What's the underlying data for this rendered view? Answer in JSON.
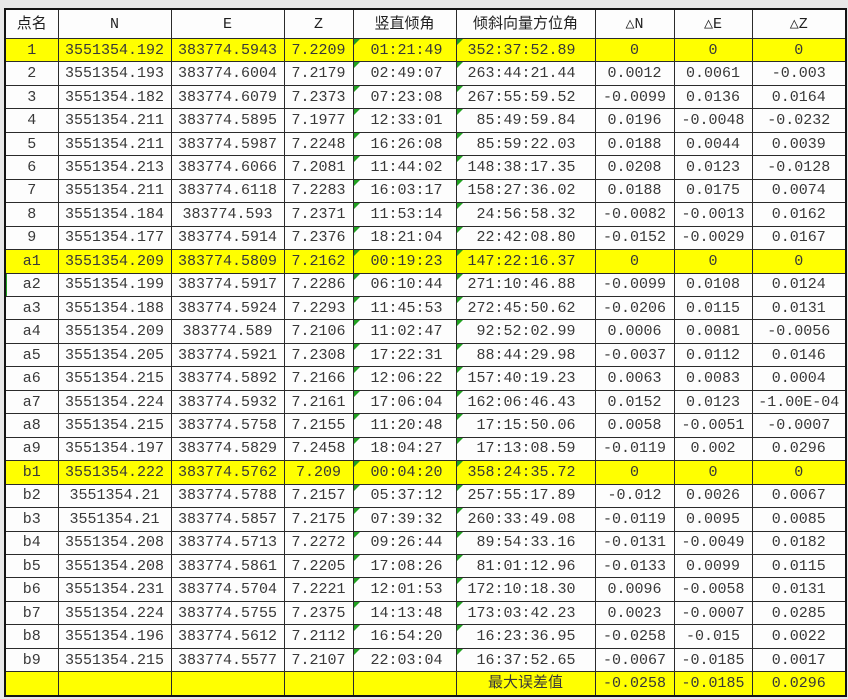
{
  "table": {
    "headers": [
      "点名",
      "N",
      "E",
      "Z",
      "竖直倾角",
      "倾斜向量方位角",
      "△N",
      "△E",
      "△Z"
    ],
    "rows": [
      {
        "cells": [
          "1",
          "3551354.192",
          "383774.5943",
          "7.2209",
          "01:21:49",
          "352:37:52.89",
          "0",
          "0",
          "0"
        ],
        "highlight": true,
        "flags": [
          4,
          5
        ]
      },
      {
        "cells": [
          "2",
          "3551354.193",
          "383774.6004",
          "7.2179",
          "02:49:07",
          "263:44:21.44",
          "0.0012",
          "0.0061",
          "-0.003"
        ],
        "highlight": false,
        "flags": [
          4,
          5
        ]
      },
      {
        "cells": [
          "3",
          "3551354.182",
          "383774.6079",
          "7.2373",
          "07:23:08",
          "267:55:59.52",
          "-0.0099",
          "0.0136",
          "0.0164"
        ],
        "highlight": false,
        "flags": [
          4,
          5
        ]
      },
      {
        "cells": [
          "4",
          "3551354.211",
          "383774.5895",
          "7.1977",
          "12:33:01",
          "85:49:59.84",
          "0.0196",
          "-0.0048",
          "-0.0232"
        ],
        "highlight": false,
        "flags": [
          4,
          5
        ]
      },
      {
        "cells": [
          "5",
          "3551354.211",
          "383774.5987",
          "7.2248",
          "16:26:08",
          "85:59:22.03",
          "0.0188",
          "0.0044",
          "0.0039"
        ],
        "highlight": false,
        "flags": [
          4,
          5
        ]
      },
      {
        "cells": [
          "6",
          "3551354.213",
          "383774.6066",
          "7.2081",
          "11:44:02",
          "148:38:17.35",
          "0.0208",
          "0.0123",
          "-0.0128"
        ],
        "highlight": false,
        "flags": [
          4,
          5
        ]
      },
      {
        "cells": [
          "7",
          "3551354.211",
          "383774.6118",
          "7.2283",
          "16:03:17",
          "158:27:36.02",
          "0.0188",
          "0.0175",
          "0.0074"
        ],
        "highlight": false,
        "flags": [
          4,
          5
        ]
      },
      {
        "cells": [
          "8",
          "3551354.184",
          "383774.593",
          "7.2371",
          "11:53:14",
          "24:56:58.32",
          "-0.0082",
          "-0.0013",
          "0.0162"
        ],
        "highlight": false,
        "flags": [
          4,
          5
        ]
      },
      {
        "cells": [
          "9",
          "3551354.177",
          "383774.5914",
          "7.2376",
          "18:21:04",
          "22:42:08.80",
          "-0.0152",
          "-0.0029",
          "0.0167"
        ],
        "highlight": false,
        "flags": [
          4,
          5
        ]
      },
      {
        "cells": [
          "a1",
          "3551354.209",
          "383774.5809",
          "7.2162",
          "00:19:23",
          "147:22:16.37",
          "0",
          "0",
          "0"
        ],
        "highlight": true,
        "flags": [
          4,
          5
        ]
      },
      {
        "cells": [
          "a2",
          "3551354.199",
          "383774.5917",
          "7.2286",
          "06:10:44",
          "271:10:46.88",
          "-0.0099",
          "0.0108",
          "0.0124"
        ],
        "highlight": false,
        "flags": [
          4,
          5
        ],
        "sel_left": true
      },
      {
        "cells": [
          "a3",
          "3551354.188",
          "383774.5924",
          "7.2293",
          "11:45:53",
          "272:45:50.62",
          "-0.0206",
          "0.0115",
          "0.0131"
        ],
        "highlight": false,
        "flags": [
          4,
          5
        ]
      },
      {
        "cells": [
          "a4",
          "3551354.209",
          "383774.589",
          "7.2106",
          "11:02:47",
          "92:52:02.99",
          "0.0006",
          "0.0081",
          "-0.0056"
        ],
        "highlight": false,
        "flags": [
          4,
          5
        ]
      },
      {
        "cells": [
          "a5",
          "3551354.205",
          "383774.5921",
          "7.2308",
          "17:22:31",
          "88:44:29.98",
          "-0.0037",
          "0.0112",
          "0.0146"
        ],
        "highlight": false,
        "flags": [
          4,
          5
        ]
      },
      {
        "cells": [
          "a6",
          "3551354.215",
          "383774.5892",
          "7.2166",
          "12:06:22",
          "157:40:19.23",
          "0.0063",
          "0.0083",
          "0.0004"
        ],
        "highlight": false,
        "flags": [
          4,
          5
        ]
      },
      {
        "cells": [
          "a7",
          "3551354.224",
          "383774.5932",
          "7.2161",
          "17:06:04",
          "162:06:46.43",
          "0.0152",
          "0.0123",
          "-1.00E-04"
        ],
        "highlight": false,
        "flags": [
          4,
          5
        ]
      },
      {
        "cells": [
          "a8",
          "3551354.215",
          "383774.5758",
          "7.2155",
          "11:20:48",
          "17:15:50.06",
          "0.0058",
          "-0.0051",
          "-0.0007"
        ],
        "highlight": false,
        "flags": [
          4,
          5
        ]
      },
      {
        "cells": [
          "a9",
          "3551354.197",
          "383774.5829",
          "7.2458",
          "18:04:27",
          "17:13:08.59",
          "-0.0119",
          "0.002",
          "0.0296"
        ],
        "highlight": false,
        "flags": [
          4,
          5
        ]
      },
      {
        "cells": [
          "b1",
          "3551354.222",
          "383774.5762",
          "7.209",
          "00:04:20",
          "358:24:35.72",
          "0",
          "0",
          "0"
        ],
        "highlight": true,
        "flags": [
          4,
          5
        ]
      },
      {
        "cells": [
          "b2",
          "3551354.21",
          "383774.5788",
          "7.2157",
          "05:37:12",
          "257:55:17.89",
          "-0.012",
          "0.0026",
          "0.0067"
        ],
        "highlight": false,
        "flags": [
          4,
          5
        ]
      },
      {
        "cells": [
          "b3",
          "3551354.21",
          "383774.5857",
          "7.2175",
          "07:39:32",
          "260:33:49.08",
          "-0.0119",
          "0.0095",
          "0.0085"
        ],
        "highlight": false,
        "flags": [
          4,
          5
        ]
      },
      {
        "cells": [
          "b4",
          "3551354.208",
          "383774.5713",
          "7.2272",
          "09:26:44",
          "89:54:33.16",
          "-0.0131",
          "-0.0049",
          "0.0182"
        ],
        "highlight": false,
        "flags": [
          4,
          5
        ]
      },
      {
        "cells": [
          "b5",
          "3551354.208",
          "383774.5861",
          "7.2205",
          "17:08:26",
          "81:01:12.96",
          "-0.0133",
          "0.0099",
          "0.0115"
        ],
        "highlight": false,
        "flags": [
          4,
          5
        ]
      },
      {
        "cells": [
          "b6",
          "3551354.231",
          "383774.5704",
          "7.2221",
          "12:01:53",
          "172:10:18.30",
          "0.0096",
          "-0.0058",
          "0.0131"
        ],
        "highlight": false,
        "flags": [
          4,
          5
        ]
      },
      {
        "cells": [
          "b7",
          "3551354.224",
          "383774.5755",
          "7.2375",
          "14:13:48",
          "173:03:42.23",
          "0.0023",
          "-0.0007",
          "0.0285"
        ],
        "highlight": false,
        "flags": [
          4,
          5
        ]
      },
      {
        "cells": [
          "b8",
          "3551354.196",
          "383774.5612",
          "7.2112",
          "16:54:20",
          "16:23:36.95",
          "-0.0258",
          "-0.015",
          "0.0022"
        ],
        "highlight": false,
        "flags": [
          4,
          5
        ]
      },
      {
        "cells": [
          "b9",
          "3551354.215",
          "383774.5577",
          "7.2107",
          "22:03:04",
          "16:37:52.65",
          "-0.0067",
          "-0.0185",
          "0.0017"
        ],
        "highlight": false,
        "flags": [
          4,
          5
        ]
      },
      {
        "cells": [
          "",
          "",
          "",
          "",
          "",
          "最大误差值",
          "-0.0258",
          "-0.0185",
          "0.0296"
        ],
        "highlight": true,
        "flags": [],
        "center_cells": [
          5
        ]
      }
    ]
  },
  "colors": {
    "highlight_yellow": "#ffff00",
    "flag_green": "#21a121",
    "grid_border": "#2b2b2b",
    "text": "#383838",
    "page_background": "#e8e8e8"
  }
}
